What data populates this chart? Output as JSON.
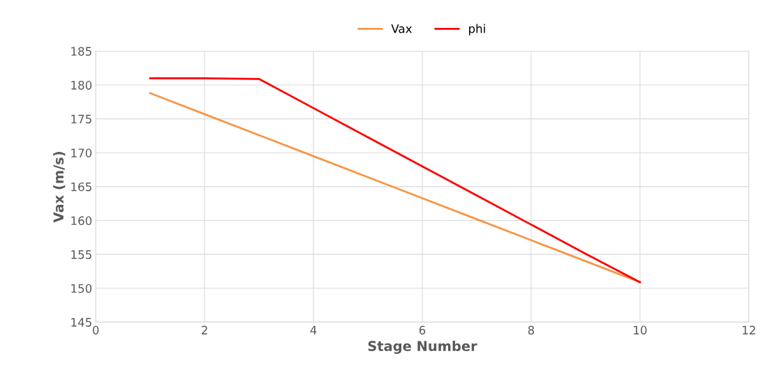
{
  "chart_data": {
    "type": "line",
    "xlabel": "Stage Number",
    "ylabel": "Vax (m/s)",
    "series": [
      {
        "name": "Vax",
        "color": "#f79646",
        "x": [
          1,
          2,
          3,
          4,
          5,
          6,
          7,
          8,
          9,
          10
        ],
        "values": [
          178.8,
          175.7,
          172.6,
          169.5,
          166.4,
          163.3,
          160.2,
          157.1,
          154.0,
          150.9
        ]
      },
      {
        "name": "phi",
        "color": "#ff0000",
        "x": [
          1,
          2,
          3,
          4,
          5,
          6,
          7,
          8,
          9,
          10
        ],
        "values": [
          181.0,
          181.0,
          180.9,
          176.6,
          172.3,
          168.0,
          163.7,
          159.4,
          155.1,
          150.9
        ]
      }
    ],
    "xlim": [
      0,
      12
    ],
    "xticks": [
      0,
      2,
      4,
      6,
      8,
      10,
      12
    ],
    "ylim": [
      145,
      185
    ],
    "yticks": [
      145,
      150,
      155,
      160,
      165,
      170,
      175,
      180,
      185
    ],
    "grid": true,
    "legend": "top",
    "marker": "none",
    "line_style": "solid"
  }
}
